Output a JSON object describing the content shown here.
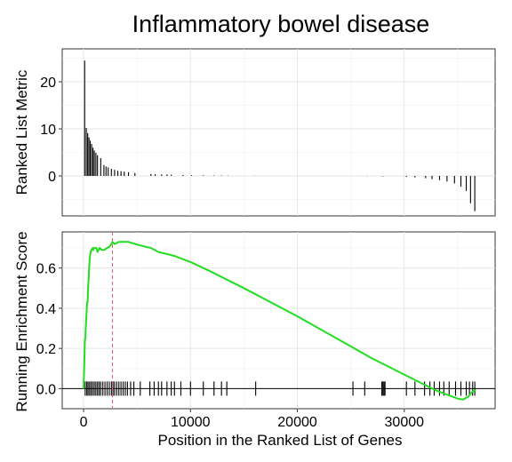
{
  "chart_data": {
    "title": "Inflammatory bowel disease",
    "xlabel": "Position in the Ranked List of Genes",
    "xlim": [
      -2000,
      38500
    ],
    "x_ticks": [
      0,
      10000,
      20000,
      30000
    ],
    "x_tick_labels": [
      "0",
      "10000",
      "20000",
      "30000"
    ],
    "grid": true,
    "panels": [
      {
        "type": "bar",
        "ylabel": "Ranked List Metric",
        "ylim": [
          -8.5,
          27
        ],
        "y_ticks": [
          0,
          10,
          20
        ],
        "y_tick_labels": [
          "0",
          "10",
          "20"
        ],
        "bars": [
          {
            "x": 100,
            "y": 24.5
          },
          {
            "x": 250,
            "y": 10.2
          },
          {
            "x": 380,
            "y": 9.1
          },
          {
            "x": 500,
            "y": 8.2
          },
          {
            "x": 620,
            "y": 7.5
          },
          {
            "x": 750,
            "y": 6.8
          },
          {
            "x": 880,
            "y": 6.0
          },
          {
            "x": 1000,
            "y": 5.4
          },
          {
            "x": 1150,
            "y": 4.9
          },
          {
            "x": 1300,
            "y": 4.4
          },
          {
            "x": 1600,
            "y": 3.8
          },
          {
            "x": 1900,
            "y": 2.3
          },
          {
            "x": 2100,
            "y": 2.0
          },
          {
            "x": 2300,
            "y": 1.8
          },
          {
            "x": 2600,
            "y": 1.5
          },
          {
            "x": 2900,
            "y": 1.3
          },
          {
            "x": 3200,
            "y": 1.1
          },
          {
            "x": 3500,
            "y": 1.0
          },
          {
            "x": 3800,
            "y": 0.9
          },
          {
            "x": 4200,
            "y": 0.8
          },
          {
            "x": 4800,
            "y": 0.6
          },
          {
            "x": 6300,
            "y": 0.4
          },
          {
            "x": 6700,
            "y": 0.35
          },
          {
            "x": 7300,
            "y": 0.3
          },
          {
            "x": 7800,
            "y": 0.3
          },
          {
            "x": 8200,
            "y": 0.25
          },
          {
            "x": 9300,
            "y": 0.2
          },
          {
            "x": 10100,
            "y": 0.15
          },
          {
            "x": 11200,
            "y": 0.12
          },
          {
            "x": 12200,
            "y": 0.1
          },
          {
            "x": 12900,
            "y": 0.08
          },
          {
            "x": 13500,
            "y": 0.06
          },
          {
            "x": 16000,
            "y": 0.03
          },
          {
            "x": 26500,
            "y": -0.05
          },
          {
            "x": 28000,
            "y": -0.1
          },
          {
            "x": 30200,
            "y": -0.2
          },
          {
            "x": 31000,
            "y": -0.3
          },
          {
            "x": 32000,
            "y": -0.5
          },
          {
            "x": 32600,
            "y": -0.7
          },
          {
            "x": 33300,
            "y": -0.9
          },
          {
            "x": 34000,
            "y": -1.2
          },
          {
            "x": 34700,
            "y": -1.6
          },
          {
            "x": 35300,
            "y": -2.3
          },
          {
            "x": 35800,
            "y": -3.2
          },
          {
            "x": 36200,
            "y": -5.8
          },
          {
            "x": 36600,
            "y": -7.5
          }
        ]
      },
      {
        "type": "line",
        "ylabel": "Running Enrichment Score",
        "ylim": [
          -0.1,
          0.78
        ],
        "y_ticks": [
          0.0,
          0.2,
          0.4,
          0.6
        ],
        "y_tick_labels": [
          "0.0",
          "0.2",
          "0.4",
          "0.6"
        ],
        "series": [
          {
            "color": "#22dd22",
            "x": [
              0,
              60,
              120,
              160,
              200,
              280,
              330,
              380,
              420,
              480,
              520,
              580,
              650,
              720,
              780,
              850,
              900,
              1000,
              1100,
              1200,
              1300,
              1500,
              1700,
              1900,
              2200,
              2500,
              2700,
              2900,
              3300,
              3800,
              4200,
              4800,
              5500,
              6300,
              7000,
              7800,
              8500,
              9000,
              10000,
              11200,
              12000,
              13500,
              15000,
              20000,
              25000,
              27000,
              28500,
              30000,
              31500,
              33000,
              34000,
              35000,
              35500,
              36000,
              36300,
              36500,
              36700
            ],
            "y": [
              0.0,
              0.12,
              0.24,
              0.25,
              0.3,
              0.38,
              0.43,
              0.43,
              0.5,
              0.55,
              0.6,
              0.65,
              0.68,
              0.69,
              0.69,
              0.7,
              0.69,
              0.7,
              0.7,
              0.7,
              0.68,
              0.7,
              0.69,
              0.69,
              0.7,
              0.71,
              0.73,
              0.72,
              0.73,
              0.73,
              0.73,
              0.72,
              0.71,
              0.7,
              0.68,
              0.67,
              0.66,
              0.65,
              0.63,
              0.6,
              0.58,
              0.54,
              0.5,
              0.36,
              0.21,
              0.15,
              0.11,
              0.07,
              0.03,
              -0.01,
              -0.03,
              -0.05,
              -0.055,
              -0.04,
              -0.02,
              -0.01,
              -0.01
            ]
          }
        ],
        "max_es_position": 2700,
        "hits": [
          150,
          300,
          420,
          560,
          700,
          850,
          1000,
          1150,
          1300,
          1450,
          1600,
          1800,
          2000,
          2200,
          2400,
          2600,
          2750,
          2900,
          3100,
          3300,
          3500,
          3700,
          3900,
          4100,
          4400,
          4700,
          5300,
          6200,
          6600,
          7000,
          7300,
          7800,
          8200,
          8500,
          9100,
          10000,
          11200,
          12200,
          12900,
          13400,
          16100,
          25200,
          26300,
          27900,
          28000,
          28100,
          28200,
          30200,
          31000,
          31900,
          32400,
          32800,
          33300,
          33700,
          34200,
          34800,
          35300,
          35800,
          36100,
          36400,
          36600
        ]
      }
    ]
  }
}
